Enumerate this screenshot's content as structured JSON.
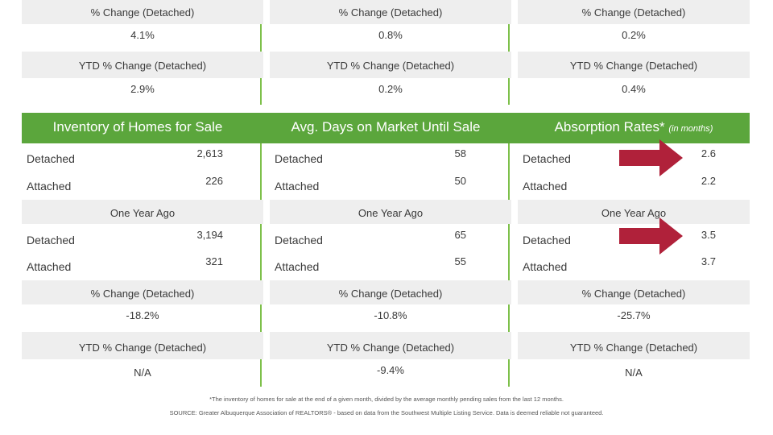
{
  "top_section": [
    {
      "pct_change_label": "% Change (Detached)",
      "pct_change_value": "4.1%",
      "ytd_label": "YTD % Change (Detached)",
      "ytd_value": "2.9%"
    },
    {
      "pct_change_label": "% Change (Detached)",
      "pct_change_value": "0.8%",
      "ytd_label": "YTD % Change (Detached)",
      "ytd_value": "0.2%"
    },
    {
      "pct_change_label": "% Change (Detached)",
      "pct_change_value": "0.2%",
      "ytd_label": "YTD % Change (Detached)",
      "ytd_value": "0.4%"
    }
  ],
  "panels": [
    {
      "title": "Inventory of Homes for Sale",
      "subtitle": "",
      "detached_label": "Detached",
      "detached_value": "2,613",
      "attached_label": "Attached",
      "attached_value": "226",
      "one_year_ago_label": "One Year Ago",
      "ya_detached_label": "Detached",
      "ya_detached_value": "3,194",
      "ya_attached_label": "Attached",
      "ya_attached_value": "321",
      "pct_change_label": "% Change (Detached)",
      "pct_change_value": "-18.2%",
      "ytd_label": "YTD % Change (Detached)",
      "ytd_value": "N/A"
    },
    {
      "title": "Avg. Days on Market Until Sale",
      "subtitle": "",
      "detached_label": "Detached",
      "detached_value": "58",
      "attached_label": "Attached",
      "attached_value": "50",
      "one_year_ago_label": "One Year Ago",
      "ya_detached_label": "Detached",
      "ya_detached_value": "65",
      "ya_attached_label": "Attached",
      "ya_attached_value": "55",
      "pct_change_label": "% Change (Detached)",
      "pct_change_value": "-10.8%",
      "ytd_label": "YTD % Change (Detached)",
      "ytd_value": "-9.4%"
    },
    {
      "title": "Absorption Rates*",
      "subtitle": "(in months)",
      "detached_label": "Detached",
      "detached_value": "2.6",
      "attached_label": "Attached",
      "attached_value": "2.2",
      "one_year_ago_label": "One Year Ago",
      "ya_detached_label": "Detached",
      "ya_detached_value": "3.5",
      "ya_attached_label": "Attached",
      "ya_attached_value": "3.7",
      "pct_change_label": "% Change (Detached)",
      "pct_change_value": "-25.7%",
      "ytd_label": "YTD % Change (Detached)",
      "ytd_value": "N/A"
    }
  ],
  "footnotes": {
    "line1": "*The inventory of homes for sale at the end of a given month, divided by the average monthly pending sales from the last 12 months.",
    "line2": "SOURCE: Greater Albuquerque Association of REALTORS® - based on data from the Southwest Multiple Listing Service. Data is deemed reliable not guaranteed."
  },
  "colors": {
    "header_green": "#5ba63c",
    "divider_green": "#7dc04a",
    "row_grey": "#eeeeee",
    "arrow_red": "#b0213a"
  },
  "icons": {
    "highlight_arrow": "right-arrow-icon"
  }
}
